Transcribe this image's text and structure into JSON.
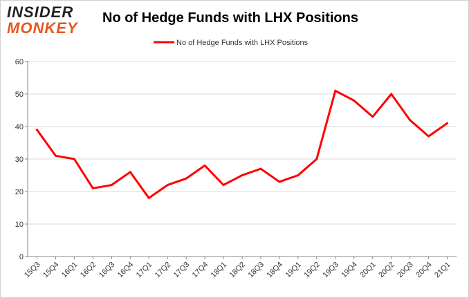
{
  "logo": {
    "line1": "INSIDER",
    "line2": "MONKEY"
  },
  "chart_data": {
    "type": "line",
    "title": "No of Hedge Funds with LHX Positions",
    "categories": [
      "15Q3",
      "15Q4",
      "16Q1",
      "16Q2",
      "16Q3",
      "16Q4",
      "17Q1",
      "17Q2",
      "17Q3",
      "17Q4",
      "18Q1",
      "18Q2",
      "18Q3",
      "18Q4",
      "19Q1",
      "19Q2",
      "19Q3",
      "19Q4",
      "20Q1",
      "20Q2",
      "20Q3",
      "20Q4",
      "21Q1"
    ],
    "series": [
      {
        "name": "No of Hedge Funds with LHX Positions",
        "color": "#ff0000",
        "values": [
          39,
          31,
          30,
          21,
          22,
          26,
          18,
          22,
          24,
          28,
          22,
          25,
          27,
          23,
          25,
          30,
          51,
          48,
          43,
          50,
          42,
          37,
          41
        ]
      }
    ],
    "ylim": [
      0,
      60
    ],
    "yticks": [
      0,
      10,
      20,
      30,
      40,
      50,
      60
    ],
    "grid": true,
    "legend": "top"
  }
}
